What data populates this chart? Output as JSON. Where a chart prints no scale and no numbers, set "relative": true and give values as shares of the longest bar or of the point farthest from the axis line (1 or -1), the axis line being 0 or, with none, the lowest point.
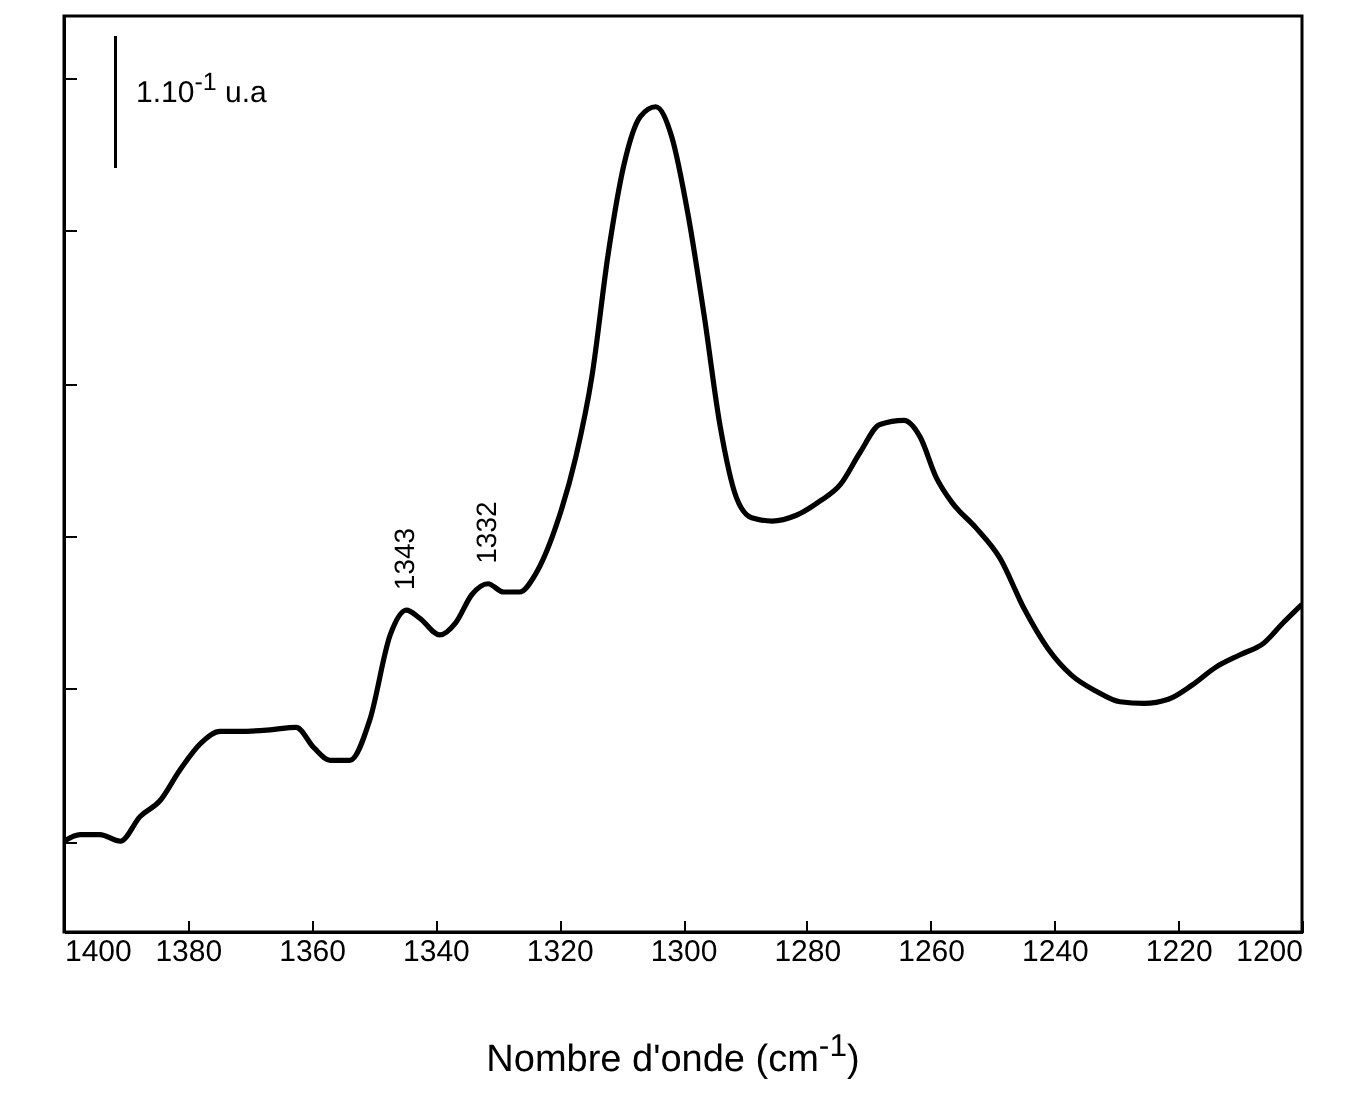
{
  "chart_data": {
    "type": "line",
    "relative": true,
    "xlabel": "Nombre d'onde (cm$^{-1}$)",
    "xlim": [
      1400,
      1200
    ],
    "xticks": [
      1400,
      1380,
      1360,
      1340,
      1320,
      1300,
      1280,
      1260,
      1240,
      1220,
      1200
    ],
    "grid": false,
    "marker": "none",
    "line_style": "solid",
    "annotations": [
      "1.10$^{-1}$ u.a",
      {
        "text": "1343",
        "x": 1344.7,
        "y": 0.39
      },
      {
        "text": "1332",
        "x": 1331.5,
        "y": 0.422
      }
    ],
    "x": [
      1400,
      1397.4,
      1394.2,
      1390.9,
      1387.7,
      1384.5,
      1381.3,
      1378,
      1374.8,
      1371.6,
      1366.7,
      1362.5,
      1359.6,
      1357,
      1353.8,
      1350.6,
      1347.3,
      1344.7,
      1342.5,
      1339.3,
      1336.7,
      1334.1,
      1331.5,
      1329,
      1326.4,
      1323.8,
      1320.6,
      1317.3,
      1314.7,
      1312.1,
      1309.5,
      1306.9,
      1304.4,
      1301.8,
      1299.2,
      1296.6,
      1294,
      1291.4,
      1288.9,
      1285.6,
      1281.7,
      1277.9,
      1274.6,
      1271.4,
      1268.2,
      1264.3,
      1261.7,
      1259.1,
      1256.5,
      1252.7,
      1248.8,
      1244.9,
      1241,
      1237.2,
      1233.3,
      1229.4,
      1225.5,
      1221.6,
      1217.8,
      1213.9,
      1210,
      1206.2,
      1203,
      1200
    ],
    "series": [
      {
        "color": "#000000",
        "values": [
          0.11,
          0.118,
          0.118,
          0.11,
          0.14,
          0.159,
          0.196,
          0.228,
          0.243,
          0.243,
          0.245,
          0.248,
          0.223,
          0.208,
          0.208,
          0.257,
          0.36,
          0.39,
          0.38,
          0.36,
          0.375,
          0.409,
          0.422,
          0.412,
          0.412,
          0.434,
          0.49,
          0.576,
          0.674,
          0.821,
          0.931,
          0.988,
          1.0,
          0.963,
          0.87,
          0.748,
          0.613,
          0.527,
          0.502,
          0.498,
          0.505,
          0.522,
          0.542,
          0.581,
          0.615,
          0.62,
          0.6,
          0.551,
          0.52,
          0.49,
          0.453,
          0.392,
          0.343,
          0.311,
          0.292,
          0.279,
          0.277,
          0.282,
          0.299,
          0.321,
          0.336,
          0.35,
          0.375,
          0.397
        ]
      }
    ]
  }
}
